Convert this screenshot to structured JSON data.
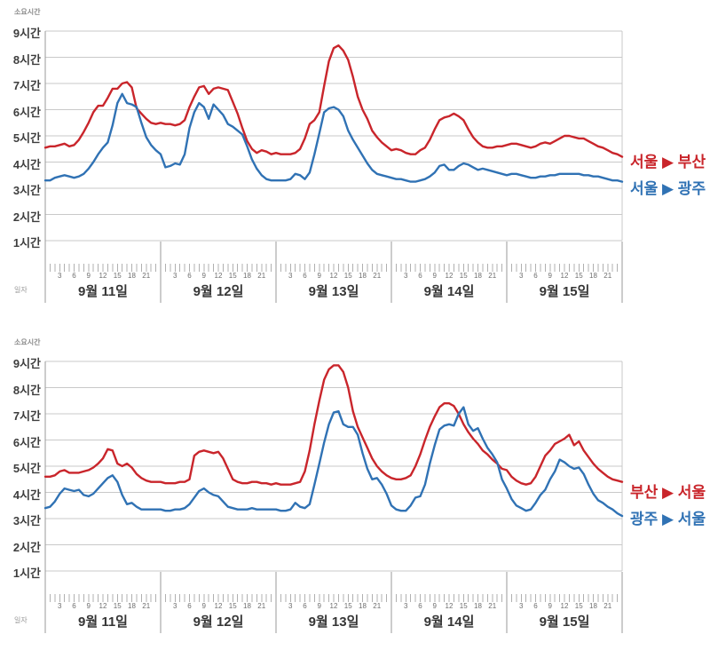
{
  "colors": {
    "red": "#c9252b",
    "blue": "#3072b4",
    "grid": "#c9c9c9",
    "axis": "#9a9a9a",
    "tick": "#b0b0b0"
  },
  "y_axis": {
    "unit_label": "소요시간",
    "tick_labels": [
      "9시간",
      "8시간",
      "7시간",
      "6시간",
      "5시간",
      "4시간",
      "3시간",
      "2시간",
      "1시간"
    ]
  },
  "x_axis": {
    "row_label": "일자",
    "hour_labels": [
      "3",
      "6",
      "9",
      "12",
      "15",
      "18",
      "21"
    ],
    "day_labels": [
      "9월 11일",
      "9월 12일",
      "9월 13일",
      "9월 14일",
      "9월 15일"
    ]
  },
  "chart_data": [
    {
      "type": "line",
      "y_unit": "시간",
      "ylim": [
        0,
        9
      ],
      "x_description": "시간(0-24) × 9월 11일~15일, 1시간 간격 표본",
      "legend_position": "right",
      "series": [
        {
          "name": "서울 ▶ 부산",
          "color": "#c9252b",
          "values": [
            4.55,
            4.6,
            4.6,
            4.65,
            4.7,
            4.6,
            4.65,
            4.85,
            5.15,
            5.5,
            5.9,
            6.15,
            6.15,
            6.45,
            6.8,
            6.8,
            7.0,
            7.05,
            6.85,
            6.05,
            5.85,
            5.65,
            5.5,
            5.45,
            5.5,
            5.45,
            5.45,
            5.4,
            5.45,
            5.6,
            6.1,
            6.5,
            6.85,
            6.9,
            6.6,
            6.8,
            6.85,
            6.8,
            6.75,
            6.3,
            5.85,
            5.3,
            4.8,
            4.5,
            4.35,
            4.45,
            4.4,
            4.3,
            4.35,
            4.3,
            4.3,
            4.3,
            4.35,
            4.5,
            4.9,
            5.45,
            5.6,
            5.9,
            6.9,
            7.85,
            8.35,
            8.45,
            8.25,
            7.9,
            7.25,
            6.5,
            6.0,
            5.65,
            5.2,
            4.95,
            4.75,
            4.6,
            4.45,
            4.5,
            4.45,
            4.35,
            4.3,
            4.3,
            4.45,
            4.55,
            4.85,
            5.25,
            5.6,
            5.7,
            5.75,
            5.85,
            5.75,
            5.6,
            5.25,
            4.95,
            4.75,
            4.6,
            4.55,
            4.55,
            4.6,
            4.6,
            4.65,
            4.7,
            4.7,
            4.65,
            4.6,
            4.55,
            4.6,
            4.7,
            4.75,
            4.7,
            4.8,
            4.9,
            5.0,
            5.0,
            4.95,
            4.9,
            4.9,
            4.8,
            4.7,
            4.6,
            4.55,
            4.45,
            4.35,
            4.3,
            4.2
          ]
        },
        {
          "name": "서울 ▶ 광주",
          "color": "#3072b4",
          "values": [
            3.3,
            3.3,
            3.4,
            3.45,
            3.5,
            3.45,
            3.4,
            3.45,
            3.55,
            3.75,
            4.0,
            4.3,
            4.55,
            4.75,
            5.4,
            6.25,
            6.6,
            6.25,
            6.2,
            6.1,
            5.5,
            4.95,
            4.65,
            4.45,
            4.3,
            3.8,
            3.85,
            3.95,
            3.9,
            4.3,
            5.3,
            5.9,
            6.25,
            6.1,
            5.65,
            6.2,
            6.0,
            5.8,
            5.45,
            5.35,
            5.2,
            5.05,
            4.6,
            4.1,
            3.75,
            3.5,
            3.35,
            3.3,
            3.3,
            3.3,
            3.3,
            3.35,
            3.55,
            3.5,
            3.35,
            3.6,
            4.3,
            5.1,
            5.9,
            6.05,
            6.1,
            6.0,
            5.75,
            5.2,
            4.85,
            4.55,
            4.25,
            3.95,
            3.7,
            3.55,
            3.5,
            3.45,
            3.4,
            3.35,
            3.35,
            3.3,
            3.25,
            3.25,
            3.3,
            3.35,
            3.45,
            3.6,
            3.85,
            3.9,
            3.7,
            3.7,
            3.85,
            3.95,
            3.9,
            3.8,
            3.7,
            3.75,
            3.7,
            3.65,
            3.6,
            3.55,
            3.5,
            3.55,
            3.55,
            3.5,
            3.45,
            3.4,
            3.4,
            3.45,
            3.45,
            3.5,
            3.5,
            3.55,
            3.55,
            3.55,
            3.55,
            3.55,
            3.5,
            3.5,
            3.45,
            3.45,
            3.4,
            3.35,
            3.3,
            3.3,
            3.25
          ]
        }
      ]
    },
    {
      "type": "line",
      "y_unit": "시간",
      "ylim": [
        0,
        9
      ],
      "x_description": "시간(0-24) × 9월 11일~15일, 1시간 간격 표본",
      "legend_position": "right",
      "series": [
        {
          "name": "부산 ▶ 서울",
          "color": "#c9252b",
          "values": [
            4.6,
            4.6,
            4.65,
            4.8,
            4.85,
            4.75,
            4.75,
            4.75,
            4.8,
            4.85,
            4.95,
            5.1,
            5.3,
            5.65,
            5.6,
            5.1,
            5.0,
            5.1,
            4.95,
            4.7,
            4.55,
            4.45,
            4.4,
            4.4,
            4.4,
            4.35,
            4.35,
            4.35,
            4.4,
            4.4,
            4.5,
            5.4,
            5.55,
            5.6,
            5.55,
            5.5,
            5.55,
            5.3,
            4.9,
            4.5,
            4.4,
            4.35,
            4.35,
            4.4,
            4.4,
            4.35,
            4.35,
            4.3,
            4.35,
            4.3,
            4.3,
            4.3,
            4.35,
            4.4,
            4.8,
            5.6,
            6.6,
            7.5,
            8.3,
            8.7,
            8.85,
            8.85,
            8.6,
            8.0,
            7.1,
            6.5,
            6.1,
            5.7,
            5.3,
            5.0,
            4.8,
            4.65,
            4.55,
            4.5,
            4.5,
            4.55,
            4.65,
            5.0,
            5.45,
            6.0,
            6.5,
            6.9,
            7.25,
            7.4,
            7.4,
            7.3,
            7.0,
            6.6,
            6.3,
            6.05,
            5.85,
            5.6,
            5.45,
            5.25,
            5.1,
            4.9,
            4.85,
            4.6,
            4.45,
            4.35,
            4.3,
            4.35,
            4.6,
            5.0,
            5.4,
            5.6,
            5.85,
            5.95,
            6.05,
            6.2,
            5.8,
            5.95,
            5.6,
            5.35,
            5.1,
            4.9,
            4.75,
            4.6,
            4.5,
            4.45,
            4.4
          ]
        },
        {
          "name": "광주 ▶ 서울",
          "color": "#3072b4",
          "values": [
            3.4,
            3.45,
            3.65,
            3.95,
            4.15,
            4.1,
            4.05,
            4.1,
            3.9,
            3.85,
            3.95,
            4.15,
            4.35,
            4.55,
            4.65,
            4.4,
            3.9,
            3.55,
            3.6,
            3.45,
            3.35,
            3.35,
            3.35,
            3.35,
            3.35,
            3.3,
            3.3,
            3.35,
            3.35,
            3.4,
            3.55,
            3.8,
            4.05,
            4.15,
            4.0,
            3.9,
            3.85,
            3.65,
            3.45,
            3.4,
            3.35,
            3.35,
            3.35,
            3.4,
            3.35,
            3.35,
            3.35,
            3.35,
            3.35,
            3.3,
            3.3,
            3.35,
            3.6,
            3.45,
            3.4,
            3.55,
            4.3,
            5.1,
            5.9,
            6.6,
            7.05,
            7.1,
            6.6,
            6.5,
            6.5,
            6.2,
            5.5,
            4.9,
            4.5,
            4.55,
            4.3,
            3.95,
            3.5,
            3.35,
            3.3,
            3.3,
            3.5,
            3.8,
            3.85,
            4.3,
            5.1,
            5.8,
            6.4,
            6.55,
            6.6,
            6.55,
            7.0,
            7.25,
            6.6,
            6.35,
            6.45,
            6.05,
            5.7,
            5.45,
            5.15,
            4.5,
            4.15,
            3.75,
            3.5,
            3.4,
            3.3,
            3.35,
            3.6,
            3.9,
            4.1,
            4.5,
            4.8,
            5.25,
            5.15,
            5.0,
            4.9,
            4.95,
            4.7,
            4.3,
            3.95,
            3.7,
            3.6,
            3.45,
            3.35,
            3.2,
            3.1
          ]
        }
      ]
    }
  ]
}
